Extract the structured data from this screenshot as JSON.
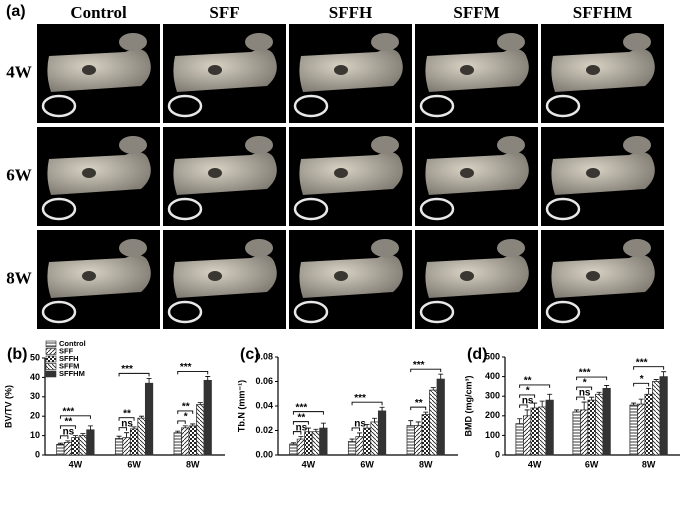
{
  "panel_a": {
    "label": "(a)",
    "columns": [
      "Control",
      "SFF",
      "SFFH",
      "SFFM",
      "SFFHM"
    ],
    "rows": [
      "4W",
      "6W",
      "8W"
    ]
  },
  "chart_data": [
    {
      "type": "bar",
      "label": "(b)",
      "y_label": "BV/TV (%)",
      "categories": [
        "4W",
        "6W",
        "8W"
      ],
      "series": [
        {
          "name": "Control",
          "pattern": "horizontal",
          "color": "#222222",
          "values": [
            5.5,
            8.5,
            11.5
          ],
          "errors": [
            0.6,
            1.2,
            0.8
          ]
        },
        {
          "name": "SFF",
          "pattern": "diagonal",
          "color": "#222222",
          "values": [
            6.5,
            9,
            14
          ],
          "errors": [
            0.8,
            2.5,
            1
          ]
        },
        {
          "name": "SFFH",
          "pattern": "checker",
          "color": "#222222",
          "values": [
            9,
            13.5,
            15
          ],
          "errors": [
            1,
            1,
            1
          ]
        },
        {
          "name": "SFFM",
          "pattern": "antidiagonal",
          "color": "#222222",
          "values": [
            10,
            19,
            26
          ],
          "errors": [
            1,
            1,
            1
          ]
        },
        {
          "name": "SFFHM",
          "pattern": "solid",
          "color": "#333333",
          "values": [
            13,
            37,
            38.5
          ],
          "errors": [
            2,
            2.5,
            2
          ]
        }
      ],
      "ylim": [
        0,
        50
      ],
      "yticks": [
        0,
        10,
        20,
        30,
        40,
        50
      ],
      "legend": true,
      "annotations": [
        {
          "text": "ns",
          "category": 0,
          "from": 0,
          "to": 1
        },
        {
          "text": "**",
          "category": 0,
          "from": 0,
          "to": 2
        },
        {
          "text": "***",
          "category": 0,
          "from": 0,
          "to": 4
        },
        {
          "text": "ns",
          "category": 1,
          "from": 0,
          "to": 1
        },
        {
          "text": "**",
          "category": 1,
          "from": 0,
          "to": 2
        },
        {
          "text": "***",
          "category": 1,
          "from": 0,
          "to": 4
        },
        {
          "text": "*",
          "category": 2,
          "from": 0,
          "to": 1
        },
        {
          "text": "**",
          "category": 2,
          "from": 0,
          "to": 2
        },
        {
          "text": "***",
          "category": 2,
          "from": 0,
          "to": 4
        }
      ]
    },
    {
      "type": "bar",
      "label": "(c)",
      "y_label": "Tb.N (mm⁻¹)",
      "categories": [
        "4W",
        "6W",
        "8W"
      ],
      "series": [
        {
          "pattern": "horizontal",
          "color": "#222222",
          "values": [
            0.009,
            0.011,
            0.024
          ],
          "errors": [
            0.001,
            0.002,
            0.004
          ]
        },
        {
          "pattern": "diagonal",
          "color": "#222222",
          "values": [
            0.013,
            0.015,
            0.024
          ],
          "errors": [
            0.002,
            0.003,
            0.003
          ]
        },
        {
          "pattern": "checker",
          "color": "#222222",
          "values": [
            0.019,
            0.022,
            0.033
          ],
          "errors": [
            0.003,
            0.003,
            0.002
          ]
        },
        {
          "pattern": "antidiagonal",
          "color": "#222222",
          "values": [
            0.019,
            0.027,
            0.053
          ],
          "errors": [
            0.002,
            0.003,
            0.002
          ]
        },
        {
          "pattern": "solid",
          "color": "#333333",
          "values": [
            0.022,
            0.036,
            0.062
          ],
          "errors": [
            0.004,
            0.003,
            0.004
          ]
        }
      ],
      "ylim": [
        0,
        0.08
      ],
      "yticks": [
        {
          "value": 0,
          "label": "0.00"
        },
        0.02,
        0.04,
        0.06,
        {
          "value": 0.08,
          "label": "0.08"
        }
      ],
      "annotations": [
        {
          "text": "ns",
          "category": 0,
          "from": 0,
          "to": 1
        },
        {
          "text": "**",
          "category": 0,
          "from": 0,
          "to": 2
        },
        {
          "text": "***",
          "category": 0,
          "from": 0,
          "to": 4
        },
        {
          "text": "ns",
          "category": 1,
          "from": 0,
          "to": 1
        },
        {
          "text": "***",
          "category": 1,
          "from": 0,
          "to": 4
        },
        {
          "text": "**",
          "category": 2,
          "from": 0,
          "to": 2
        },
        {
          "text": "***",
          "category": 2,
          "from": 0,
          "to": 4
        }
      ]
    },
    {
      "type": "bar",
      "label": "(d)",
      "y_label": "BMD (mg/cm³)",
      "categories": [
        "4W",
        "6W",
        "8W"
      ],
      "series": [
        {
          "pattern": "horizontal",
          "color": "#222222",
          "values": [
            160,
            220,
            255
          ],
          "errors": [
            25,
            10,
            10
          ]
        },
        {
          "pattern": "diagonal",
          "color": "#222222",
          "values": [
            200,
            230,
            260
          ],
          "errors": [
            30,
            40,
            25
          ]
        },
        {
          "pattern": "checker",
          "color": "#222222",
          "values": [
            240,
            280,
            310
          ],
          "errors": [
            25,
            15,
            30
          ]
        },
        {
          "pattern": "antidiagonal",
          "color": "#222222",
          "values": [
            245,
            310,
            375
          ],
          "errors": [
            30,
            10,
            10
          ]
        },
        {
          "pattern": "solid",
          "color": "#333333",
          "values": [
            280,
            340,
            400
          ],
          "errors": [
            30,
            15,
            25
          ]
        }
      ],
      "ylim": [
        0,
        500
      ],
      "yticks": [
        0,
        100,
        200,
        300,
        400,
        500
      ],
      "annotations": [
        {
          "text": "ns",
          "category": 0,
          "from": 0,
          "to": 1
        },
        {
          "text": "*",
          "category": 0,
          "from": 0,
          "to": 2
        },
        {
          "text": "**",
          "category": 0,
          "from": 0,
          "to": 4
        },
        {
          "text": "ns",
          "category": 1,
          "from": 0,
          "to": 1
        },
        {
          "text": "*",
          "category": 1,
          "from": 0,
          "to": 2
        },
        {
          "text": "***",
          "category": 1,
          "from": 0,
          "to": 4
        },
        {
          "text": "*",
          "category": 2,
          "from": 0,
          "to": 2
        },
        {
          "text": "***",
          "category": 2,
          "from": 0,
          "to": 4
        }
      ]
    }
  ]
}
